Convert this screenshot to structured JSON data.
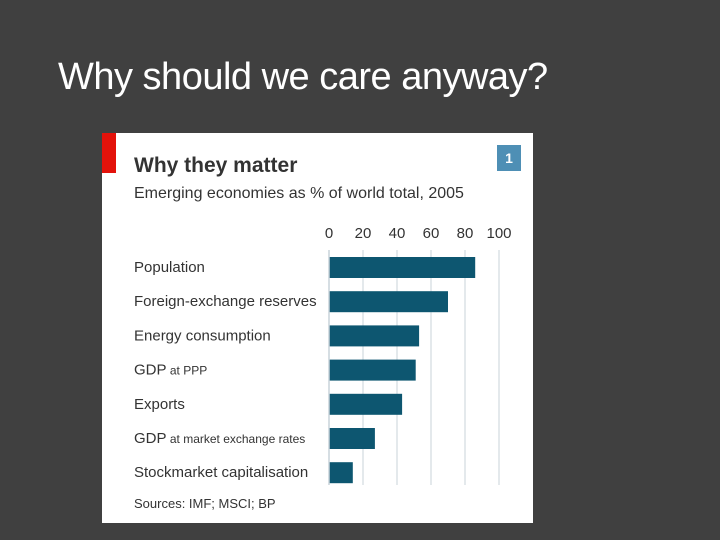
{
  "slide": {
    "title": "Why should we care anyway?"
  },
  "chart_data": {
    "type": "bar",
    "orientation": "horizontal",
    "title": "Why they matter",
    "subtitle": "Emerging economies as % of world total, 2005",
    "badge": "1",
    "source": "Sources: IMF; MSCI; BP",
    "xlim": [
      0,
      100
    ],
    "xticks": [
      0,
      20,
      40,
      60,
      80,
      100
    ],
    "gridlines": true,
    "categories": [
      {
        "main": "Population",
        "suffix": ""
      },
      {
        "main": "Foreign-exchange reserves",
        "suffix": ""
      },
      {
        "main": "Energy consumption",
        "suffix": ""
      },
      {
        "main": "GDP",
        "suffix": " at PPP"
      },
      {
        "main": "Exports",
        "suffix": ""
      },
      {
        "main": "GDP",
        "suffix": " at market exchange rates"
      },
      {
        "main": "Stockmarket capitalisation",
        "suffix": ""
      }
    ],
    "values": [
      86,
      70,
      53,
      51,
      43,
      27,
      14
    ],
    "colors": {
      "bar": "#0d5670",
      "grid": "#c9d3da",
      "accent": "#e3120b",
      "badge": "#4e8fb5"
    }
  }
}
